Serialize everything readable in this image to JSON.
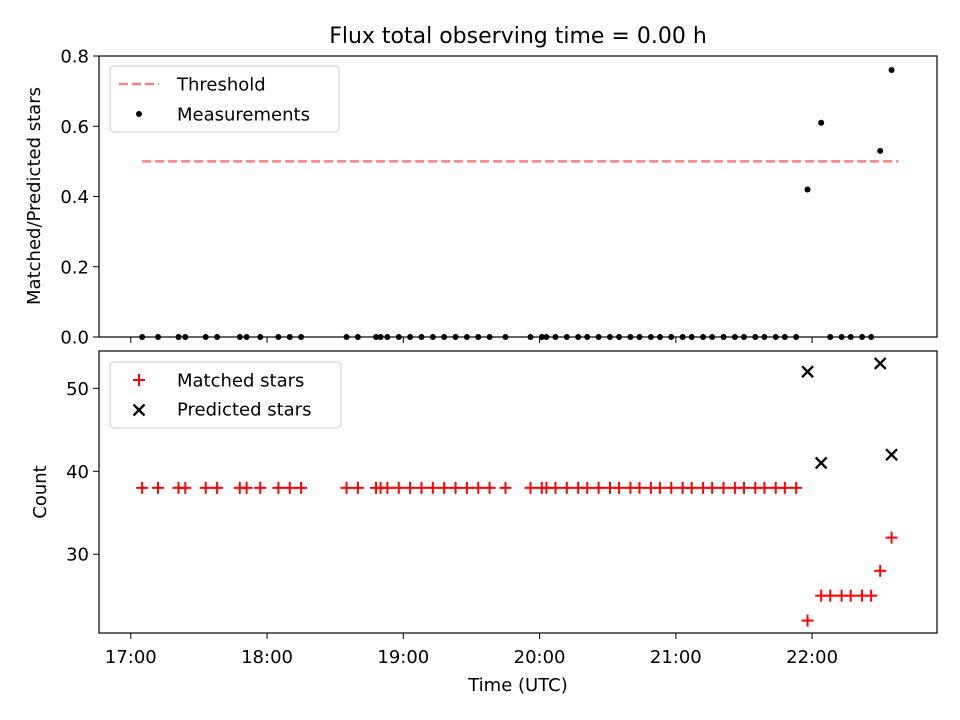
{
  "chart_data": [
    {
      "type": "scatter",
      "title": "Flux total observing time = 0.00 h",
      "xlabel": "",
      "ylabel": "Matched/Predicted stars",
      "xlim": [
        "16:46",
        "22:55"
      ],
      "ylim": [
        0,
        0.8
      ],
      "yticks": [
        0.0,
        0.2,
        0.4,
        0.6,
        0.8
      ],
      "ytick_labels": [
        "0.0",
        "0.2",
        "0.4",
        "0.6",
        "0.8"
      ],
      "legend_position": "top-left",
      "threshold": {
        "name": "Threshold",
        "value": 0.5,
        "x_start": "17:05",
        "x_end": "22:38",
        "color": "#ff7f7f",
        "style": "dashed"
      },
      "series": [
        {
          "name": "Measurements",
          "color": "#000000",
          "marker": "dot",
          "points": [
            [
              "17:05",
              0
            ],
            [
              "17:12",
              0
            ],
            [
              "17:21",
              0
            ],
            [
              "17:24",
              0
            ],
            [
              "17:33",
              0
            ],
            [
              "17:38",
              0
            ],
            [
              "17:48",
              0
            ],
            [
              "17:51",
              0
            ],
            [
              "17:57",
              0
            ],
            [
              "18:05",
              0
            ],
            [
              "18:10",
              0
            ],
            [
              "18:15",
              0
            ],
            [
              "18:35",
              0
            ],
            [
              "18:40",
              0
            ],
            [
              "18:48",
              0
            ],
            [
              "18:50",
              0
            ],
            [
              "18:53",
              0
            ],
            [
              "18:58",
              0
            ],
            [
              "19:03",
              0
            ],
            [
              "19:08",
              0
            ],
            [
              "19:13",
              0
            ],
            [
              "19:18",
              0
            ],
            [
              "19:23",
              0
            ],
            [
              "19:28",
              0
            ],
            [
              "19:33",
              0
            ],
            [
              "19:38",
              0
            ],
            [
              "19:45",
              0
            ],
            [
              "19:56",
              0
            ],
            [
              "20:01",
              0
            ],
            [
              "20:03",
              0
            ],
            [
              "20:07",
              0
            ],
            [
              "20:12",
              0
            ],
            [
              "20:17",
              0
            ],
            [
              "20:21",
              0
            ],
            [
              "20:26",
              0
            ],
            [
              "20:31",
              0
            ],
            [
              "20:35",
              0
            ],
            [
              "20:40",
              0
            ],
            [
              "20:44",
              0
            ],
            [
              "20:49",
              0
            ],
            [
              "20:53",
              0
            ],
            [
              "20:58",
              0
            ],
            [
              "21:03",
              0
            ],
            [
              "21:07",
              0
            ],
            [
              "21:12",
              0
            ],
            [
              "21:16",
              0
            ],
            [
              "21:21",
              0
            ],
            [
              "21:26",
              0
            ],
            [
              "21:30",
              0
            ],
            [
              "21:35",
              0
            ],
            [
              "21:39",
              0
            ],
            [
              "21:44",
              0
            ],
            [
              "21:48",
              0
            ],
            [
              "21:53",
              0
            ],
            [
              "21:58",
              0.42
            ],
            [
              "22:04",
              0.61
            ],
            [
              "22:08",
              0
            ],
            [
              "22:13",
              0
            ],
            [
              "22:17",
              0
            ],
            [
              "22:22",
              0
            ],
            [
              "22:26",
              0
            ],
            [
              "22:30",
              0.53
            ],
            [
              "22:35",
              0.76
            ]
          ]
        }
      ]
    },
    {
      "type": "scatter",
      "title": "",
      "xlabel": "Time (UTC)",
      "ylabel": "Count",
      "xlim": [
        "16:46",
        "22:55"
      ],
      "ylim": [
        20.5,
        54.5
      ],
      "yticks": [
        30,
        40,
        50
      ],
      "ytick_labels": [
        "30",
        "40",
        "50"
      ],
      "xticks": [
        "17:00",
        "18:00",
        "19:00",
        "20:00",
        "21:00",
        "22:00"
      ],
      "xtick_labels": [
        "17:00",
        "18:00",
        "19:00",
        "20:00",
        "21:00",
        "22:00"
      ],
      "legend_position": "top-left",
      "series": [
        {
          "name": "Matched stars",
          "color": "#ff0000",
          "marker": "plus",
          "points": [
            [
              "17:05",
              38
            ],
            [
              "17:12",
              38
            ],
            [
              "17:21",
              38
            ],
            [
              "17:24",
              38
            ],
            [
              "17:33",
              38
            ],
            [
              "17:38",
              38
            ],
            [
              "17:48",
              38
            ],
            [
              "17:51",
              38
            ],
            [
              "17:57",
              38
            ],
            [
              "18:05",
              38
            ],
            [
              "18:10",
              38
            ],
            [
              "18:15",
              38
            ],
            [
              "18:35",
              38
            ],
            [
              "18:40",
              38
            ],
            [
              "18:48",
              38
            ],
            [
              "18:50",
              38
            ],
            [
              "18:53",
              38
            ],
            [
              "18:58",
              38
            ],
            [
              "19:03",
              38
            ],
            [
              "19:08",
              38
            ],
            [
              "19:13",
              38
            ],
            [
              "19:18",
              38
            ],
            [
              "19:23",
              38
            ],
            [
              "19:28",
              38
            ],
            [
              "19:33",
              38
            ],
            [
              "19:38",
              38
            ],
            [
              "19:45",
              38
            ],
            [
              "19:56",
              38
            ],
            [
              "20:01",
              38
            ],
            [
              "20:03",
              38
            ],
            [
              "20:07",
              38
            ],
            [
              "20:12",
              38
            ],
            [
              "20:17",
              38
            ],
            [
              "20:21",
              38
            ],
            [
              "20:26",
              38
            ],
            [
              "20:31",
              38
            ],
            [
              "20:35",
              38
            ],
            [
              "20:40",
              38
            ],
            [
              "20:44",
              38
            ],
            [
              "20:49",
              38
            ],
            [
              "20:53",
              38
            ],
            [
              "20:58",
              38
            ],
            [
              "21:03",
              38
            ],
            [
              "21:07",
              38
            ],
            [
              "21:12",
              38
            ],
            [
              "21:16",
              38
            ],
            [
              "21:21",
              38
            ],
            [
              "21:26",
              38
            ],
            [
              "21:30",
              38
            ],
            [
              "21:35",
              38
            ],
            [
              "21:39",
              38
            ],
            [
              "21:44",
              38
            ],
            [
              "21:48",
              38
            ],
            [
              "21:53",
              38
            ],
            [
              "21:58",
              22
            ],
            [
              "22:04",
              25
            ],
            [
              "22:08",
              25
            ],
            [
              "22:13",
              25
            ],
            [
              "22:17",
              25
            ],
            [
              "22:22",
              25
            ],
            [
              "22:26",
              25
            ],
            [
              "22:30",
              28
            ],
            [
              "22:35",
              32
            ]
          ]
        },
        {
          "name": "Predicted stars",
          "color": "#000000",
          "marker": "x",
          "points": [
            [
              "21:58",
              52
            ],
            [
              "22:04",
              41
            ],
            [
              "22:30",
              53
            ],
            [
              "22:35",
              42
            ]
          ]
        }
      ]
    }
  ]
}
